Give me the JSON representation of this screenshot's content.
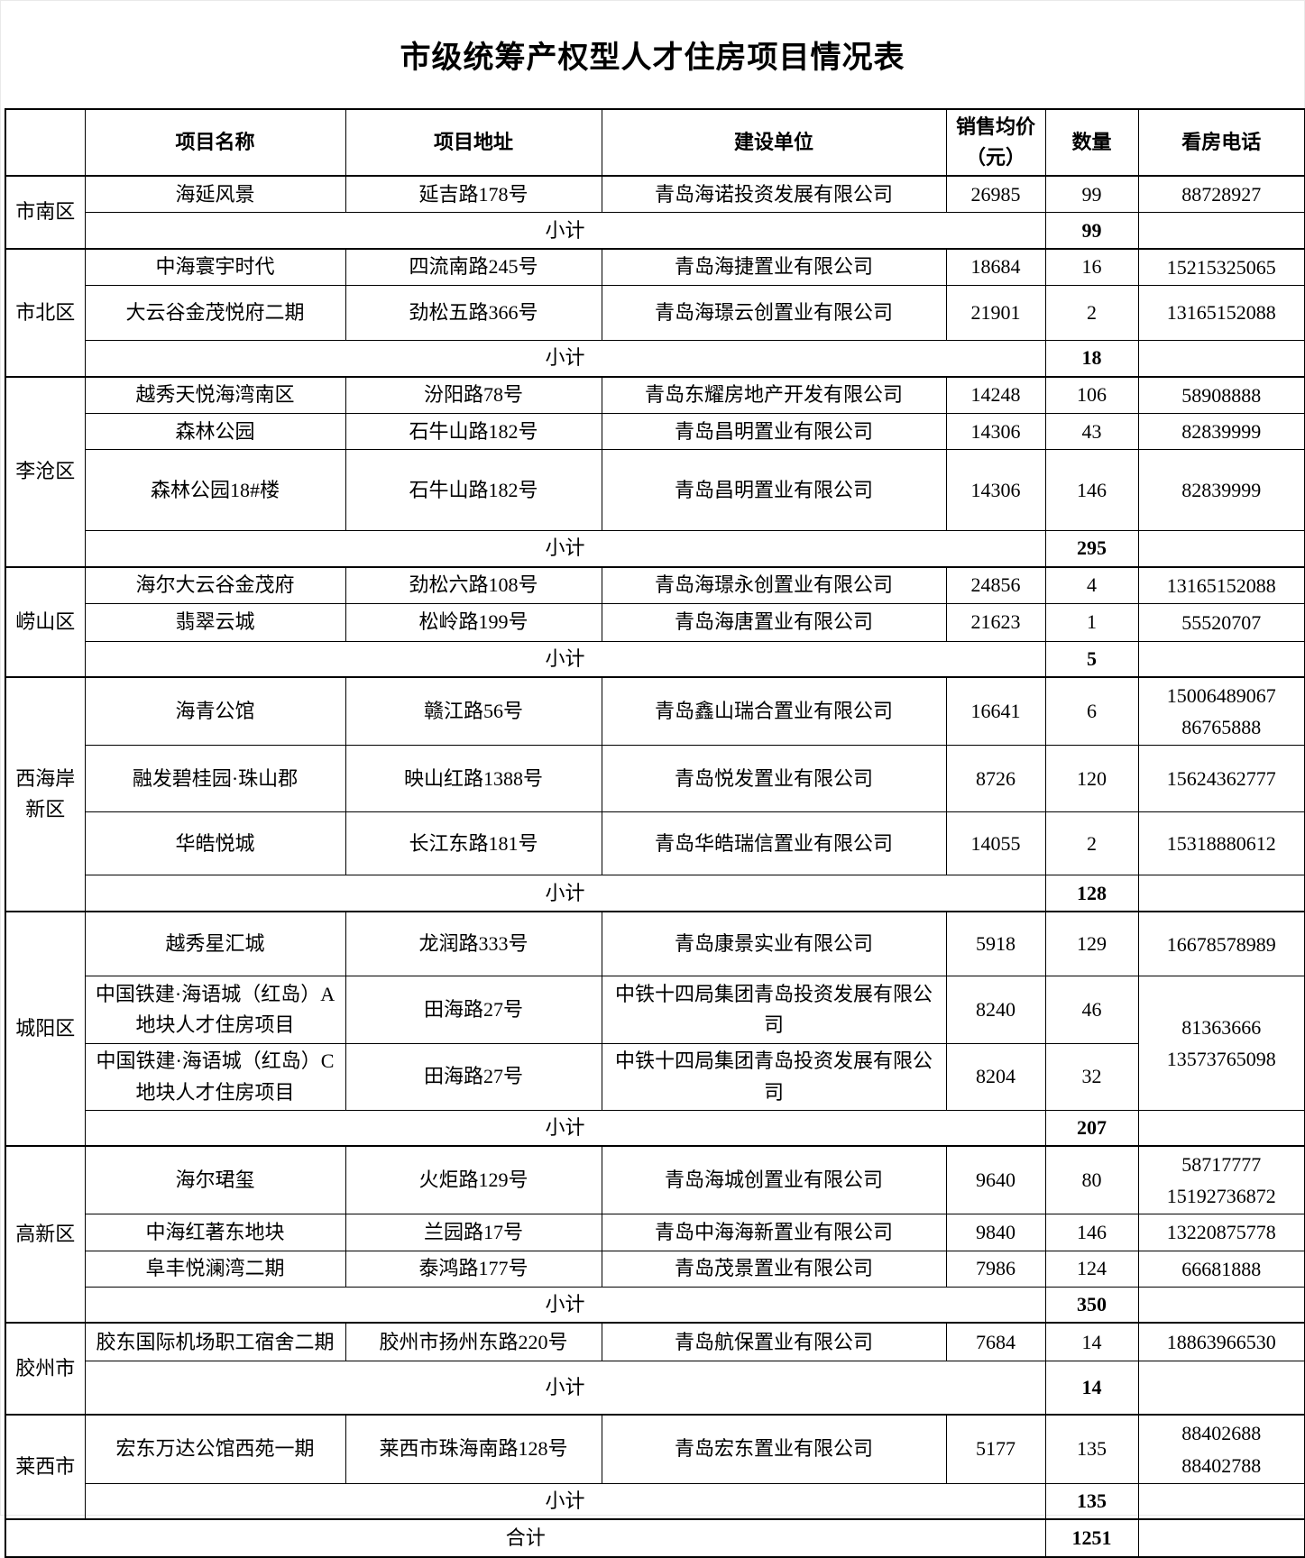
{
  "title": "市级统筹产权型人才住房项目情况表",
  "table": {
    "columns": [
      {
        "key": "name",
        "label": "项目名称"
      },
      {
        "key": "address",
        "label": "项目地址"
      },
      {
        "key": "company",
        "label": "建设单位"
      },
      {
        "key": "price",
        "label": "销售均价（元）"
      },
      {
        "key": "qty",
        "label": "数量"
      },
      {
        "key": "phone",
        "label": "看房电话"
      }
    ],
    "subtotal_label": "小计",
    "total_label": "合计",
    "total_qty": "1251",
    "groups": [
      {
        "district": "市南区",
        "subtotal": "99",
        "rows": [
          {
            "name": "海延风景",
            "address": "延吉路178号",
            "company": "青岛海诺投资发展有限公司",
            "price": "26985",
            "qty": "99",
            "phone": [
              "88728927"
            ]
          }
        ]
      },
      {
        "district": "市北区",
        "subtotal": "18",
        "rows": [
          {
            "name": "中海寰宇时代",
            "address": "四流南路245号",
            "company": "青岛海捷置业有限公司",
            "price": "18684",
            "qty": "16",
            "phone": [
              "15215325065"
            ]
          },
          {
            "name": "大云谷金茂悦府二期",
            "address": "劲松五路366号",
            "company": "青岛海璟云创置业有限公司",
            "price": "21901",
            "qty": "2",
            "phone": [
              "13165152088"
            ]
          }
        ]
      },
      {
        "district": "李沧区",
        "subtotal": "295",
        "rows": [
          {
            "name": "越秀天悦海湾南区",
            "address": "汾阳路78号",
            "company": "青岛东耀房地产开发有限公司",
            "price": "14248",
            "qty": "106",
            "phone": [
              "58908888"
            ]
          },
          {
            "name": "森林公园",
            "address": "石牛山路182号",
            "company": "青岛昌明置业有限公司",
            "price": "14306",
            "qty": "43",
            "phone": [
              "82839999"
            ]
          },
          {
            "name": "森林公园18#楼",
            "address": "石牛山路182号",
            "company": "青岛昌明置业有限公司",
            "price": "14306",
            "qty": "146",
            "phone": [
              "82839999"
            ]
          }
        ]
      },
      {
        "district": "崂山区",
        "subtotal": "5",
        "rows": [
          {
            "name": "海尔大云谷金茂府",
            "address": "劲松六路108号",
            "company": "青岛海璟永创置业有限公司",
            "price": "24856",
            "qty": "4",
            "phone": [
              "13165152088"
            ]
          },
          {
            "name": "翡翠云城",
            "address": "松岭路199号",
            "company": "青岛海唐置业有限公司",
            "price": "21623",
            "qty": "1",
            "phone": [
              "55520707"
            ]
          }
        ]
      },
      {
        "district": "西海岸新区",
        "subtotal": "128",
        "rows": [
          {
            "name": "海青公馆",
            "address": "赣江路56号",
            "company": "青岛鑫山瑞合置业有限公司",
            "price": "16641",
            "qty": "6",
            "phone": [
              "15006489067",
              "86765888"
            ]
          },
          {
            "name": "融发碧桂园·珠山郡",
            "address": "映山红路1388号",
            "company": "青岛悦发置业有限公司",
            "price": "8726",
            "qty": "120",
            "phone": [
              "15624362777"
            ]
          },
          {
            "name": "华皓悦城",
            "address": "长江东路181号",
            "company": "青岛华皓瑞信置业有限公司",
            "price": "14055",
            "qty": "2",
            "phone": [
              "15318880612"
            ]
          }
        ]
      },
      {
        "district": "城阳区",
        "subtotal": "207",
        "rows": [
          {
            "name": "越秀星汇城",
            "address": "龙润路333号",
            "company": "青岛康景实业有限公司",
            "price": "5918",
            "qty": "129",
            "phone": [
              "16678578989"
            ]
          },
          {
            "name": "中国铁建·海语城（红岛）A地块人才住房项目",
            "address": "田海路27号",
            "company": "中铁十四局集团青岛投资发展有限公司",
            "price": "8240",
            "qty": "46",
            "phone": [
              "81363666",
              "13573765098"
            ],
            "phone_rowspan": 2
          },
          {
            "name": "中国铁建·海语城（红岛）C地块人才住房项目",
            "address": "田海路27号",
            "company": "中铁十四局集团青岛投资发展有限公司",
            "price": "8204",
            "qty": "32",
            "phone_merged": true
          }
        ]
      },
      {
        "district": "高新区",
        "subtotal": "350",
        "rows": [
          {
            "name": "海尔珺玺",
            "address": "火炬路129号",
            "company": "青岛海城创置业有限公司",
            "price": "9640",
            "qty": "80",
            "phone": [
              "58717777",
              "15192736872"
            ]
          },
          {
            "name": "中海红著东地块",
            "address": "兰园路17号",
            "company": "青岛中海海新置业有限公司",
            "price": "9840",
            "qty": "146",
            "phone": [
              "13220875778"
            ]
          },
          {
            "name": "阜丰悦澜湾二期",
            "address": "泰鸿路177号",
            "company": "青岛茂景置业有限公司",
            "price": "7986",
            "qty": "124",
            "phone": [
              "66681888"
            ]
          }
        ]
      },
      {
        "district": "胶州市",
        "subtotal": "14",
        "rows": [
          {
            "name": "胶东国际机场职工宿舍二期",
            "address": "胶州市扬州东路220号",
            "company": "青岛航保置业有限公司",
            "price": "7684",
            "qty": "14",
            "phone": [
              "18863966530"
            ]
          }
        ]
      },
      {
        "district": "莱西市",
        "subtotal": "135",
        "rows": [
          {
            "name": "宏东万达公馆西苑一期",
            "address": "莱西市珠海南路128号",
            "company": "青岛宏东置业有限公司",
            "price": "5177",
            "qty": "135",
            "phone": [
              "88402688",
              "88402788"
            ]
          }
        ]
      }
    ]
  }
}
